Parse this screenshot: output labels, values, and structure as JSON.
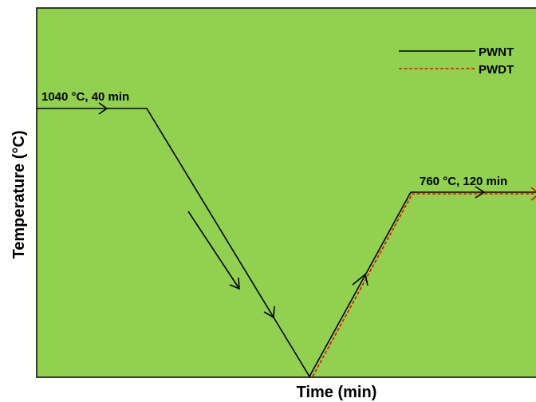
{
  "axes": {
    "x_label": "Time (min)",
    "y_label": "Temperature (°C)",
    "background_color": "#92d050",
    "frame_color": "#000000"
  },
  "legend": {
    "placement": "top-right",
    "entries": [
      {
        "name": "PWNT",
        "color": "#000000",
        "style": "solid"
      },
      {
        "name": "PWDT",
        "color": "#ff0000",
        "style": "dashed"
      }
    ]
  },
  "annotations": {
    "solution_treatment": "1040 °C, 40 min",
    "aging_treatment": "760 °C, 120 min"
  },
  "profiles": {
    "PWNT": {
      "color": "#000000",
      "stages": [
        "hold 1040 °C for 40 min",
        "cool to minimum",
        "heat to 760 °C",
        "hold 760 °C for 120 min"
      ]
    },
    "PWDT": {
      "color": "#ff0000",
      "stages": [
        "heat from minimum to 760 °C",
        "hold 760 °C for 120 min"
      ]
    }
  }
}
